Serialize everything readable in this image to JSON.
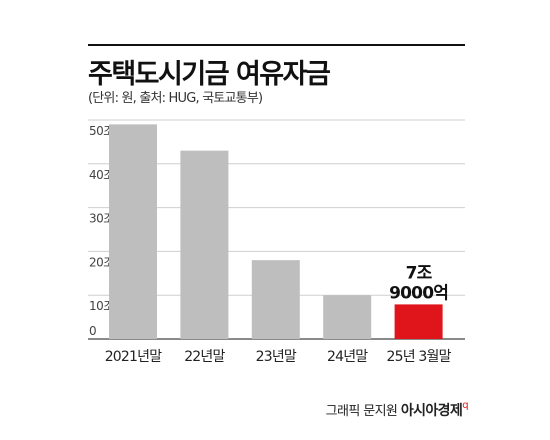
{
  "header": {
    "title": "주택도시기금 여유자금",
    "subtitle": "(단위: 원, 출처: HUG, 국토교통부)"
  },
  "chart_data": {
    "type": "bar",
    "categories": [
      "2021년말",
      "22년말",
      "23년말",
      "24년말",
      "25년 3월말"
    ],
    "values": [
      49,
      43,
      18,
      10,
      7.9
    ],
    "y_ticks": [
      "50조",
      "40조",
      "30조",
      "20조",
      "10조",
      "0"
    ],
    "ylim": [
      0,
      50
    ],
    "grid": true,
    "bar_color": "#bebebe",
    "highlight_color": "#e0151b",
    "highlight_index": 4,
    "annotation": [
      "7조",
      "9000억"
    ]
  },
  "credit": {
    "text": "그래픽 문지원",
    "brand": "아시아경제",
    "brand_mark": "q"
  }
}
